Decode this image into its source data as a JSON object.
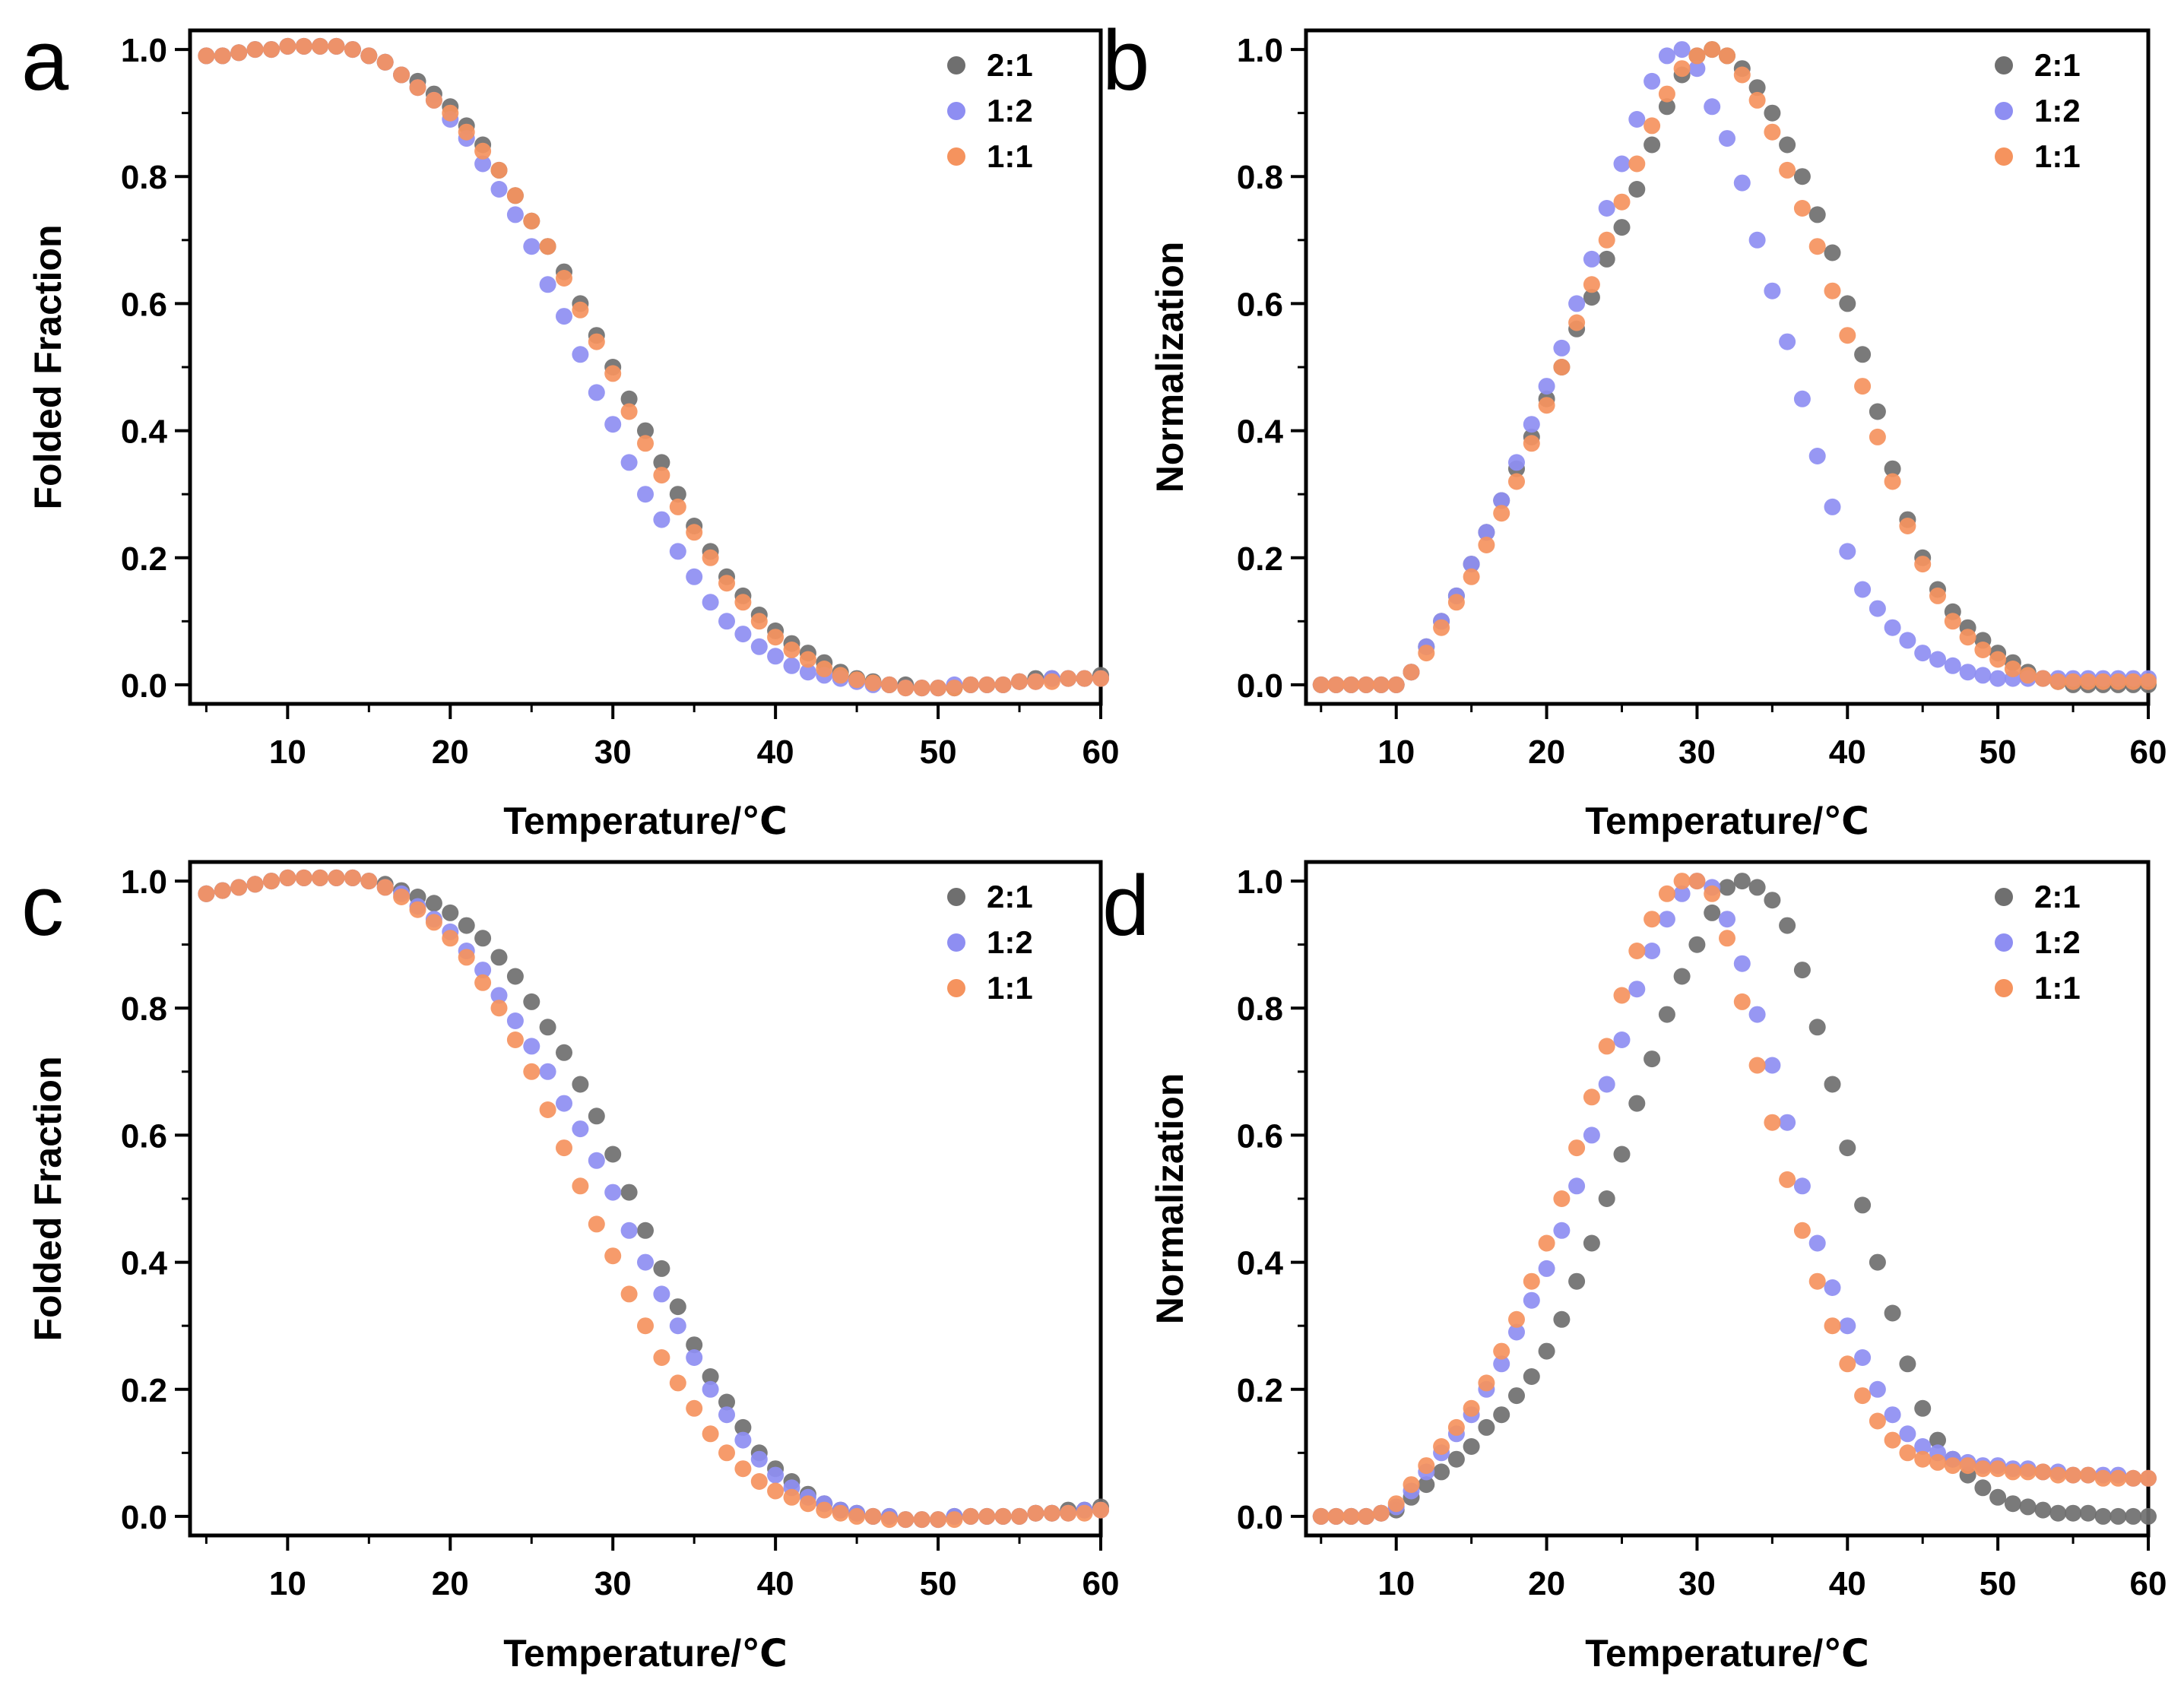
{
  "chart_data": [
    {
      "panel_label": "a",
      "type": "scatter",
      "xlabel": "Temperature/℃",
      "ylabel": "Folded Fraction",
      "xlim": [
        4,
        60
      ],
      "ylim": [
        -0.03,
        1.03
      ],
      "xticks": [
        "10",
        "20",
        "30",
        "40",
        "50",
        "60"
      ],
      "yticks": [
        "0.0",
        "0.2",
        "0.4",
        "0.6",
        "0.8",
        "1.0"
      ],
      "grid": false,
      "legend_position": "top-right",
      "x": [
        5,
        6,
        7,
        8,
        9,
        10,
        11,
        12,
        13,
        14,
        15,
        16,
        17,
        18,
        19,
        20,
        21,
        22,
        23,
        24,
        25,
        26,
        27,
        28,
        29,
        30,
        31,
        32,
        33,
        34,
        35,
        36,
        37,
        38,
        39,
        40,
        41,
        42,
        43,
        44,
        45,
        46,
        47,
        48,
        49,
        50,
        51,
        52,
        53,
        54,
        55,
        56,
        57,
        58,
        59,
        60
      ],
      "series": [
        {
          "name": "2:1",
          "color": "#6f6f6f",
          "values": [
            0.99,
            0.99,
            0.995,
            1.0,
            1.0,
            1.005,
            1.005,
            1.005,
            1.005,
            1.0,
            0.99,
            0.98,
            0.96,
            0.95,
            0.93,
            0.91,
            0.88,
            0.85,
            0.81,
            0.77,
            0.73,
            0.69,
            0.65,
            0.6,
            0.55,
            0.5,
            0.45,
            0.4,
            0.35,
            0.3,
            0.25,
            0.21,
            0.17,
            0.14,
            0.11,
            0.085,
            0.065,
            0.05,
            0.035,
            0.02,
            0.01,
            0.005,
            0.0,
            0.0,
            -0.005,
            -0.005,
            -0.005,
            0.0,
            0.0,
            0.0,
            0.005,
            0.01,
            0.01,
            0.01,
            0.01,
            0.015
          ]
        },
        {
          "name": "1:2",
          "color": "#8e8ef2",
          "values": [
            0.99,
            0.99,
            0.995,
            1.0,
            1.0,
            1.005,
            1.005,
            1.005,
            1.005,
            1.0,
            0.99,
            0.98,
            0.96,
            0.94,
            0.92,
            0.89,
            0.86,
            0.82,
            0.78,
            0.74,
            0.69,
            0.63,
            0.58,
            0.52,
            0.46,
            0.41,
            0.35,
            0.3,
            0.26,
            0.21,
            0.17,
            0.13,
            0.1,
            0.08,
            0.06,
            0.045,
            0.03,
            0.02,
            0.015,
            0.01,
            0.005,
            0.0,
            0.0,
            -0.005,
            -0.005,
            -0.005,
            0.0,
            0.0,
            0.0,
            0.0,
            0.005,
            0.005,
            0.01,
            0.01,
            0.01,
            0.01
          ]
        },
        {
          "name": "1:1",
          "color": "#f5935e",
          "values": [
            0.99,
            0.99,
            0.995,
            1.0,
            1.0,
            1.005,
            1.005,
            1.005,
            1.005,
            1.0,
            0.99,
            0.98,
            0.96,
            0.94,
            0.92,
            0.9,
            0.87,
            0.84,
            0.81,
            0.77,
            0.73,
            0.69,
            0.64,
            0.59,
            0.54,
            0.49,
            0.43,
            0.38,
            0.33,
            0.28,
            0.24,
            0.2,
            0.16,
            0.13,
            0.1,
            0.075,
            0.055,
            0.04,
            0.025,
            0.015,
            0.008,
            0.003,
            0.0,
            -0.005,
            -0.005,
            -0.005,
            -0.005,
            0.0,
            0.0,
            0.0,
            0.005,
            0.005,
            0.005,
            0.01,
            0.01,
            0.01
          ]
        }
      ]
    },
    {
      "panel_label": "b",
      "type": "scatter",
      "xlabel": "Temperature/℃",
      "ylabel": "Normalization",
      "xlim": [
        4,
        60
      ],
      "ylim": [
        -0.03,
        1.03
      ],
      "xticks": [
        "10",
        "20",
        "30",
        "40",
        "50",
        "60"
      ],
      "yticks": [
        "0.0",
        "0.2",
        "0.4",
        "0.6",
        "0.8",
        "1.0"
      ],
      "grid": false,
      "legend_position": "top-right",
      "x": [
        5,
        6,
        7,
        8,
        9,
        10,
        11,
        12,
        13,
        14,
        15,
        16,
        17,
        18,
        19,
        20,
        21,
        22,
        23,
        24,
        25,
        26,
        27,
        28,
        29,
        30,
        31,
        32,
        33,
        34,
        35,
        36,
        37,
        38,
        39,
        40,
        41,
        42,
        43,
        44,
        45,
        46,
        47,
        48,
        49,
        50,
        51,
        52,
        53,
        54,
        55,
        56,
        57,
        58,
        59,
        60
      ],
      "series": [
        {
          "name": "2:1",
          "color": "#6f6f6f",
          "values": [
            0,
            0,
            0,
            0,
            0,
            0,
            0.02,
            0.06,
            0.1,
            0.14,
            0.19,
            0.24,
            0.29,
            0.34,
            0.39,
            0.45,
            0.5,
            0.56,
            0.61,
            0.67,
            0.72,
            0.78,
            0.85,
            0.91,
            0.96,
            0.99,
            1.0,
            0.99,
            0.97,
            0.94,
            0.9,
            0.85,
            0.8,
            0.74,
            0.68,
            0.6,
            0.52,
            0.43,
            0.34,
            0.26,
            0.2,
            0.15,
            0.115,
            0.09,
            0.07,
            0.05,
            0.035,
            0.02,
            0.01,
            0.005,
            0.0,
            0.0,
            0.0,
            0.0,
            0.0,
            0.0
          ]
        },
        {
          "name": "1:2",
          "color": "#8e8ef2",
          "values": [
            0,
            0,
            0,
            0,
            0,
            0,
            0.02,
            0.06,
            0.1,
            0.14,
            0.19,
            0.24,
            0.29,
            0.35,
            0.41,
            0.47,
            0.53,
            0.6,
            0.67,
            0.75,
            0.82,
            0.89,
            0.95,
            0.99,
            1.0,
            0.97,
            0.91,
            0.86,
            0.79,
            0.7,
            0.62,
            0.54,
            0.45,
            0.36,
            0.28,
            0.21,
            0.15,
            0.12,
            0.09,
            0.07,
            0.05,
            0.04,
            0.03,
            0.02,
            0.015,
            0.01,
            0.01,
            0.01,
            0.01,
            0.01,
            0.01,
            0.01,
            0.01,
            0.01,
            0.01,
            0.01
          ]
        },
        {
          "name": "1:1",
          "color": "#f5935e",
          "values": [
            0,
            0,
            0,
            0,
            0,
            0,
            0.02,
            0.05,
            0.09,
            0.13,
            0.17,
            0.22,
            0.27,
            0.32,
            0.38,
            0.44,
            0.5,
            0.57,
            0.63,
            0.7,
            0.76,
            0.82,
            0.88,
            0.93,
            0.97,
            0.99,
            1.0,
            0.99,
            0.96,
            0.92,
            0.87,
            0.81,
            0.75,
            0.69,
            0.62,
            0.55,
            0.47,
            0.39,
            0.32,
            0.25,
            0.19,
            0.14,
            0.1,
            0.075,
            0.055,
            0.04,
            0.025,
            0.015,
            0.01,
            0.005,
            0.005,
            0.005,
            0.005,
            0.005,
            0.005,
            0.005
          ]
        }
      ]
    },
    {
      "panel_label": "c",
      "type": "scatter",
      "xlabel": "Temperature/℃",
      "ylabel": "Folded Fraction",
      "xlim": [
        4,
        60
      ],
      "ylim": [
        -0.03,
        1.03
      ],
      "xticks": [
        "10",
        "20",
        "30",
        "40",
        "50",
        "60"
      ],
      "yticks": [
        "0.0",
        "0.2",
        "0.4",
        "0.6",
        "0.8",
        "1.0"
      ],
      "grid": false,
      "legend_position": "top-right",
      "x": [
        5,
        6,
        7,
        8,
        9,
        10,
        11,
        12,
        13,
        14,
        15,
        16,
        17,
        18,
        19,
        20,
        21,
        22,
        23,
        24,
        25,
        26,
        27,
        28,
        29,
        30,
        31,
        32,
        33,
        34,
        35,
        36,
        37,
        38,
        39,
        40,
        41,
        42,
        43,
        44,
        45,
        46,
        47,
        48,
        49,
        50,
        51,
        52,
        53,
        54,
        55,
        56,
        57,
        58,
        59,
        60
      ],
      "series": [
        {
          "name": "2:1",
          "color": "#6f6f6f",
          "values": [
            0.98,
            0.985,
            0.99,
            0.995,
            1.0,
            1.005,
            1.005,
            1.005,
            1.005,
            1.005,
            1.0,
            0.995,
            0.985,
            0.975,
            0.965,
            0.95,
            0.93,
            0.91,
            0.88,
            0.85,
            0.81,
            0.77,
            0.73,
            0.68,
            0.63,
            0.57,
            0.51,
            0.45,
            0.39,
            0.33,
            0.27,
            0.22,
            0.18,
            0.14,
            0.1,
            0.075,
            0.055,
            0.035,
            0.02,
            0.01,
            0.005,
            0.0,
            0.0,
            -0.005,
            -0.005,
            -0.005,
            0.0,
            0.0,
            0.0,
            0.0,
            0.0,
            0.005,
            0.005,
            0.01,
            0.01,
            0.015
          ]
        },
        {
          "name": "1:2",
          "color": "#8e8ef2",
          "values": [
            0.98,
            0.985,
            0.99,
            0.995,
            1.0,
            1.005,
            1.005,
            1.005,
            1.005,
            1.005,
            1.0,
            0.99,
            0.98,
            0.96,
            0.94,
            0.92,
            0.89,
            0.86,
            0.82,
            0.78,
            0.74,
            0.7,
            0.65,
            0.61,
            0.56,
            0.51,
            0.45,
            0.4,
            0.35,
            0.3,
            0.25,
            0.2,
            0.16,
            0.12,
            0.09,
            0.065,
            0.045,
            0.03,
            0.02,
            0.01,
            0.005,
            0.0,
            0.0,
            -0.005,
            -0.005,
            -0.005,
            0.0,
            0.0,
            0.0,
            0.0,
            0.0,
            0.005,
            0.005,
            0.005,
            0.01,
            0.01
          ]
        },
        {
          "name": "1:1",
          "color": "#f5935e",
          "values": [
            0.98,
            0.985,
            0.99,
            0.995,
            1.0,
            1.005,
            1.005,
            1.005,
            1.005,
            1.005,
            1.0,
            0.99,
            0.975,
            0.955,
            0.935,
            0.91,
            0.88,
            0.84,
            0.8,
            0.75,
            0.7,
            0.64,
            0.58,
            0.52,
            0.46,
            0.41,
            0.35,
            0.3,
            0.25,
            0.21,
            0.17,
            0.13,
            0.1,
            0.075,
            0.055,
            0.04,
            0.03,
            0.02,
            0.01,
            0.005,
            0.0,
            0.0,
            -0.005,
            -0.005,
            -0.005,
            -0.005,
            -0.005,
            0.0,
            0.0,
            0.0,
            0.0,
            0.005,
            0.005,
            0.005,
            0.005,
            0.01
          ]
        }
      ]
    },
    {
      "panel_label": "d",
      "type": "scatter",
      "xlabel": "Temperature/℃",
      "ylabel": "Normalization",
      "xlim": [
        4,
        60
      ],
      "ylim": [
        -0.03,
        1.03
      ],
      "xticks": [
        "10",
        "20",
        "30",
        "40",
        "50",
        "60"
      ],
      "yticks": [
        "0.0",
        "0.2",
        "0.4",
        "0.6",
        "0.8",
        "1.0"
      ],
      "grid": false,
      "legend_position": "top-right",
      "x": [
        5,
        6,
        7,
        8,
        9,
        10,
        11,
        12,
        13,
        14,
        15,
        16,
        17,
        18,
        19,
        20,
        21,
        22,
        23,
        24,
        25,
        26,
        27,
        28,
        29,
        30,
        31,
        32,
        33,
        34,
        35,
        36,
        37,
        38,
        39,
        40,
        41,
        42,
        43,
        44,
        45,
        46,
        47,
        48,
        49,
        50,
        51,
        52,
        53,
        54,
        55,
        56,
        57,
        58,
        59,
        60
      ],
      "series": [
        {
          "name": "2:1",
          "color": "#6f6f6f",
          "values": [
            0,
            0,
            0,
            0,
            0.005,
            0.01,
            0.03,
            0.05,
            0.07,
            0.09,
            0.11,
            0.14,
            0.16,
            0.19,
            0.22,
            0.26,
            0.31,
            0.37,
            0.43,
            0.5,
            0.57,
            0.65,
            0.72,
            0.79,
            0.85,
            0.9,
            0.95,
            0.99,
            1.0,
            0.99,
            0.97,
            0.93,
            0.86,
            0.77,
            0.68,
            0.58,
            0.49,
            0.4,
            0.32,
            0.24,
            0.17,
            0.12,
            0.09,
            0.065,
            0.045,
            0.03,
            0.02,
            0.015,
            0.01,
            0.005,
            0.005,
            0.005,
            0.0,
            0.0,
            0.0,
            0.0
          ]
        },
        {
          "name": "1:2",
          "color": "#8e8ef2",
          "values": [
            0,
            0,
            0,
            0,
            0.005,
            0.015,
            0.04,
            0.07,
            0.1,
            0.13,
            0.16,
            0.2,
            0.24,
            0.29,
            0.34,
            0.39,
            0.45,
            0.52,
            0.6,
            0.68,
            0.75,
            0.83,
            0.89,
            0.94,
            0.98,
            1.0,
            0.99,
            0.94,
            0.87,
            0.79,
            0.71,
            0.62,
            0.52,
            0.43,
            0.36,
            0.3,
            0.25,
            0.2,
            0.16,
            0.13,
            0.11,
            0.1,
            0.09,
            0.085,
            0.08,
            0.08,
            0.075,
            0.075,
            0.07,
            0.07,
            0.065,
            0.065,
            0.065,
            0.065,
            0.06,
            0.06
          ]
        },
        {
          "name": "1:1",
          "color": "#f5935e",
          "values": [
            0,
            0,
            0,
            0,
            0.005,
            0.02,
            0.05,
            0.08,
            0.11,
            0.14,
            0.17,
            0.21,
            0.26,
            0.31,
            0.37,
            0.43,
            0.5,
            0.58,
            0.66,
            0.74,
            0.82,
            0.89,
            0.94,
            0.98,
            1.0,
            1.0,
            0.98,
            0.91,
            0.81,
            0.71,
            0.62,
            0.53,
            0.45,
            0.37,
            0.3,
            0.24,
            0.19,
            0.15,
            0.12,
            0.1,
            0.09,
            0.085,
            0.08,
            0.08,
            0.075,
            0.075,
            0.07,
            0.07,
            0.07,
            0.065,
            0.065,
            0.065,
            0.06,
            0.06,
            0.06,
            0.06
          ]
        }
      ]
    }
  ]
}
